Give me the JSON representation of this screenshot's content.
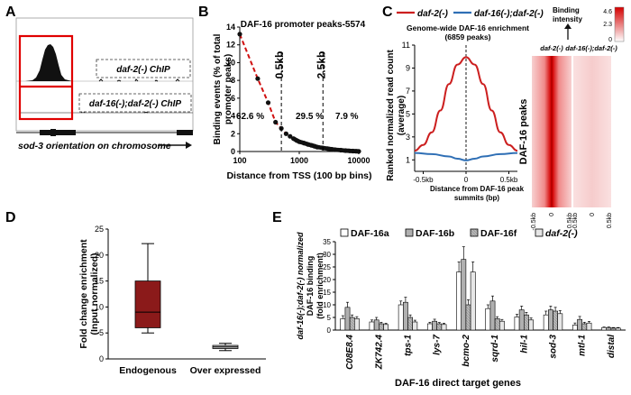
{
  "panels": {
    "A": {
      "letter": "A",
      "label_top": "daf-2(-) ChIP",
      "label_bottom": "daf-16(-);daf-2(-) ChIP",
      "caption": "sod-3 orientation on chromosome"
    },
    "B": {
      "letter": "B",
      "title": "DAF-16 promoter peaks-5574",
      "vline_labels": [
        "0.5kb",
        "2.5kb"
      ],
      "region_pcts": [
        "62.6 %",
        "29.5 %",
        "7.9 %"
      ]
    },
    "C": {
      "letter": "C",
      "legend": [
        "daf-2(-)",
        "daf-16(-);daf-2(-)"
      ],
      "subtitle": [
        "Genome-wide DAF-16 enrichment",
        "(6859 peaks)"
      ],
      "ylabel": [
        "Ranked normalized read count",
        "(average)"
      ],
      "xticks": [
        "-0.5kb",
        "0",
        "0.5kb"
      ],
      "xlabel": [
        "Distance from DAF-16 peak",
        "summits (bp)"
      ],
      "yticks": [
        "1",
        "3",
        "5",
        "7",
        "9",
        "11"
      ],
      "binding_label": [
        "Binding",
        "intensity"
      ],
      "colorbar_ticks": [
        "4.6",
        "2.3",
        "0"
      ],
      "heat_col_labels": [
        "daf-2(-)",
        "daf-16(-);daf-2(-)"
      ],
      "heat_row_label": "DAF-16 peaks",
      "heat_xticks": [
        "-0.5kb",
        "0",
        "0.5kb"
      ],
      "colors": {
        "daf2": "#cc1f1f",
        "daf16": "#2f6fb5"
      }
    },
    "D": {
      "letter": "D"
    },
    "E": {
      "letter": "E",
      "xlabel": "DAF-16 direct target genes"
    }
  },
  "chart_data": [
    {
      "panel": "B",
      "type": "scatter",
      "title": "DAF-16 promoter peaks-5574",
      "xlabel": "Distance from TSS (100 bp bins)",
      "ylabel": "Binding events (% of total promoter peaks)",
      "xscale": "log",
      "xlim": [
        100,
        10000
      ],
      "ylim": [
        0,
        14
      ],
      "yticks": [
        0,
        2,
        4,
        6,
        8,
        10,
        12,
        14
      ],
      "xticks": [
        100,
        1000,
        10000
      ],
      "x": [
        100,
        200,
        300,
        400,
        500,
        600,
        700,
        800,
        900,
        1000,
        1200,
        1400,
        1600,
        1800,
        2000,
        2500,
        3000,
        3500,
        4000,
        5000,
        6000,
        7000,
        8000,
        9000,
        10000
      ],
      "y": [
        13.2,
        8.2,
        5.5,
        3.3,
        2.6,
        2.0,
        1.7,
        1.45,
        1.25,
        1.1,
        0.95,
        0.8,
        0.7,
        0.6,
        0.5,
        0.4,
        0.32,
        0.25,
        0.2,
        0.15,
        0.1,
        0.07,
        0.05,
        0.03,
        0.02
      ],
      "fit": "dashed red exponential",
      "vlines": [
        500,
        2500
      ]
    },
    {
      "panel": "C",
      "type": "line",
      "xlim": [
        -0.6,
        0.6
      ],
      "ylim": [
        1,
        11
      ],
      "series": [
        {
          "name": "daf-2(-)",
          "x": [
            -0.6,
            -0.5,
            -0.4,
            -0.3,
            -0.2,
            -0.1,
            0,
            0.1,
            0.2,
            0.3,
            0.4,
            0.5,
            0.6
          ],
          "y": [
            1.8,
            2.3,
            3.4,
            5.3,
            7.6,
            9.3,
            9.95,
            9.3,
            7.6,
            5.3,
            3.4,
            2.3,
            1.8
          ]
        },
        {
          "name": "daf-16(-);daf-2(-)",
          "x": [
            -0.6,
            -0.4,
            -0.2,
            -0.1,
            0,
            0.1,
            0.2,
            0.4,
            0.6
          ],
          "y": [
            1.6,
            1.5,
            1.3,
            1.1,
            0.95,
            1.1,
            1.3,
            1.5,
            1.6
          ]
        }
      ]
    },
    {
      "panel": "D",
      "type": "box",
      "ylabel": "Fold change enrichment (Input normalized)",
      "ylim": [
        0,
        25
      ],
      "yticks": [
        0,
        5,
        10,
        15,
        20,
        25
      ],
      "categories": [
        "Endogenous",
        "Over expressed"
      ],
      "boxes": [
        {
          "name": "Endogenous",
          "min": 5,
          "q1": 6,
          "median": 9,
          "q3": 15,
          "max": 22.2,
          "color": "#8b1a1a"
        },
        {
          "name": "Over expressed",
          "min": 1.6,
          "q1": 2,
          "median": 2.3,
          "q3": 2.6,
          "max": 3.0,
          "color": "#cccccc"
        }
      ]
    },
    {
      "panel": "E",
      "type": "bar",
      "ylabel": "daf-16(-);daf-2(-) normalized DAF-16 binding (fold enrichment)",
      "xlabel": "DAF-16 direct target genes",
      "ylim": [
        0,
        35
      ],
      "yticks": [
        0,
        5,
        10,
        15,
        20,
        25,
        30,
        35
      ],
      "categories": [
        "C08E8.4",
        "ZK742.4",
        "tps-1",
        "lys-7",
        "bcmo-2",
        "sqrd-1",
        "hil-1",
        "sod-3",
        "mtl-1",
        "distal"
      ],
      "series": [
        {
          "name": "DAF-16a",
          "values": [
            4.5,
            3.2,
            10,
            2.5,
            23,
            8.5,
            5.2,
            6,
            2,
            1
          ],
          "errors": [
            1.2,
            0.8,
            1.5,
            0.6,
            4,
            1.5,
            1,
            1.5,
            0.8,
            0.2
          ]
        },
        {
          "name": "DAF-16b",
          "values": [
            9,
            4,
            11,
            3.5,
            28,
            11.5,
            8,
            8,
            4.2,
            1
          ],
          "errors": [
            2,
            1,
            2,
            0.8,
            5,
            2,
            1.5,
            1.5,
            1.2,
            0.2
          ]
        },
        {
          "name": "DAF-16f",
          "values": [
            5,
            2.5,
            5,
            2.5,
            10,
            4.5,
            6,
            7.5,
            2.5,
            0.8
          ],
          "errors": [
            1,
            0.6,
            1,
            0.5,
            2,
            0.8,
            1,
            1.5,
            0.6,
            0.2
          ]
        },
        {
          "name": "daf-2(-)",
          "values": [
            4.5,
            2.2,
            3.2,
            2.2,
            23,
            3.5,
            4,
            6.5,
            2.8,
            0.8
          ],
          "errors": [
            0.8,
            0.5,
            0.7,
            0.5,
            4,
            0.7,
            0.8,
            1.2,
            0.6,
            0.2
          ]
        }
      ]
    }
  ]
}
